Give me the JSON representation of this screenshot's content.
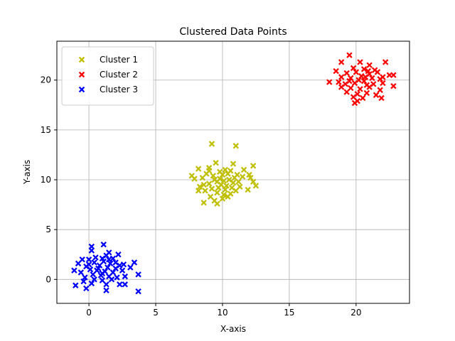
{
  "chart_data": {
    "type": "scatter",
    "title": "Clustered Data Points",
    "xlabel": "X-axis",
    "ylabel": "Y-axis",
    "xlim": [
      -2.4,
      24.0
    ],
    "ylim": [
      -2.4,
      23.9
    ],
    "xticks": [
      0,
      5,
      10,
      15,
      20
    ],
    "yticks": [
      0,
      5,
      10,
      15,
      20
    ],
    "grid": true,
    "legend_position": "top-left",
    "marker": "X",
    "series": [
      {
        "name": "Cluster 1",
        "color": "#bfbf00",
        "points": [
          [
            9.2,
            13.6
          ],
          [
            11.0,
            13.4
          ],
          [
            10.8,
            11.6
          ],
          [
            9.5,
            11.7
          ],
          [
            9.0,
            11.2
          ],
          [
            8.2,
            11.1
          ],
          [
            11.6,
            11.0
          ],
          [
            12.3,
            11.4
          ],
          [
            10.2,
            11.0
          ],
          [
            10.6,
            10.9
          ],
          [
            9.8,
            10.8
          ],
          [
            8.8,
            10.6
          ],
          [
            7.7,
            10.4
          ],
          [
            7.9,
            10.1
          ],
          [
            8.5,
            10.2
          ],
          [
            9.3,
            10.4
          ],
          [
            10.0,
            10.5
          ],
          [
            10.4,
            10.6
          ],
          [
            11.1,
            10.5
          ],
          [
            11.5,
            10.3
          ],
          [
            12.0,
            10.5
          ],
          [
            12.1,
            10.2
          ],
          [
            12.3,
            9.8
          ],
          [
            12.5,
            9.4
          ],
          [
            11.9,
            9.0
          ],
          [
            11.3,
            9.3
          ],
          [
            10.8,
            9.7
          ],
          [
            10.1,
            9.9
          ],
          [
            9.6,
            9.8
          ],
          [
            9.0,
            9.6
          ],
          [
            8.6,
            9.5
          ],
          [
            8.3,
            9.3
          ],
          [
            8.2,
            8.9
          ],
          [
            8.7,
            8.9
          ],
          [
            9.2,
            9.1
          ],
          [
            9.7,
            9.2
          ],
          [
            10.3,
            9.4
          ],
          [
            10.7,
            9.2
          ],
          [
            11.0,
            8.9
          ],
          [
            10.6,
            8.6
          ],
          [
            10.1,
            8.5
          ],
          [
            9.6,
            8.7
          ],
          [
            9.1,
            8.3
          ],
          [
            9.4,
            7.9
          ],
          [
            9.6,
            7.6
          ],
          [
            10.0,
            8.1
          ],
          [
            10.4,
            8.3
          ],
          [
            8.6,
            7.7
          ],
          [
            9.8,
            10.1
          ],
          [
            10.5,
            10.0
          ],
          [
            9.4,
            10.0
          ],
          [
            10.9,
            10.2
          ],
          [
            9.9,
            9.5
          ],
          [
            10.2,
            9.0
          ],
          [
            9.0,
            10.9
          ],
          [
            11.2,
            9.8
          ]
        ]
      },
      {
        "name": "Cluster 2",
        "color": "#ff0000",
        "points": [
          [
            19.5,
            22.5
          ],
          [
            18.9,
            21.8
          ],
          [
            20.3,
            21.8
          ],
          [
            22.2,
            21.8
          ],
          [
            21.0,
            21.5
          ],
          [
            19.8,
            21.2
          ],
          [
            20.6,
            21.1
          ],
          [
            18.5,
            20.9
          ],
          [
            19.3,
            20.7
          ],
          [
            20.0,
            20.8
          ],
          [
            20.9,
            20.9
          ],
          [
            21.6,
            20.8
          ],
          [
            22.5,
            20.5
          ],
          [
            22.8,
            20.5
          ],
          [
            18.9,
            20.3
          ],
          [
            19.6,
            20.2
          ],
          [
            20.4,
            20.4
          ],
          [
            21.2,
            20.2
          ],
          [
            21.8,
            20.1
          ],
          [
            22.0,
            20.3
          ],
          [
            18.0,
            19.8
          ],
          [
            18.7,
            19.8
          ],
          [
            19.2,
            19.6
          ],
          [
            19.9,
            19.7
          ],
          [
            20.6,
            19.9
          ],
          [
            21.3,
            19.6
          ],
          [
            22.0,
            19.7
          ],
          [
            22.8,
            19.4
          ],
          [
            18.9,
            19.3
          ],
          [
            19.6,
            19.2
          ],
          [
            20.3,
            19.1
          ],
          [
            21.0,
            19.3
          ],
          [
            21.8,
            19.0
          ],
          [
            19.3,
            18.8
          ],
          [
            20.1,
            18.6
          ],
          [
            20.8,
            18.7
          ],
          [
            21.5,
            18.5
          ],
          [
            19.8,
            18.3
          ],
          [
            20.5,
            18.2
          ],
          [
            21.9,
            18.2
          ],
          [
            20.1,
            17.9
          ],
          [
            19.9,
            17.7
          ],
          [
            20.7,
            20.3
          ],
          [
            20.2,
            20.0
          ],
          [
            21.0,
            20.6
          ],
          [
            19.5,
            19.9
          ],
          [
            20.8,
            19.5
          ],
          [
            21.4,
            21.0
          ]
        ]
      },
      {
        "name": "Cluster 3",
        "color": "#0000ff",
        "points": [
          [
            1.1,
            3.5
          ],
          [
            0.2,
            3.3
          ],
          [
            0.2,
            2.9
          ],
          [
            1.5,
            2.7
          ],
          [
            2.2,
            2.5
          ],
          [
            1.3,
            2.4
          ],
          [
            0.5,
            2.2
          ],
          [
            1.0,
            2.1
          ],
          [
            -0.5,
            2.0
          ],
          [
            0.0,
            2.0
          ],
          [
            1.8,
            2.1
          ],
          [
            2.6,
            1.5
          ],
          [
            3.4,
            1.7
          ],
          [
            -0.8,
            1.6
          ],
          [
            0.4,
            1.7
          ],
          [
            1.1,
            1.8
          ],
          [
            1.6,
            1.6
          ],
          [
            2.3,
            1.4
          ],
          [
            3.1,
            1.2
          ],
          [
            -0.2,
            1.3
          ],
          [
            0.8,
            1.4
          ],
          [
            1.4,
            1.2
          ],
          [
            2.0,
            1.1
          ],
          [
            0.1,
            1.0
          ],
          [
            0.6,
            0.9
          ],
          [
            1.2,
            0.8
          ],
          [
            1.8,
            0.7
          ],
          [
            2.5,
            0.9
          ],
          [
            -1.1,
            0.9
          ],
          [
            -0.6,
            0.7
          ],
          [
            0.3,
            0.5
          ],
          [
            0.9,
            0.4
          ],
          [
            1.5,
            0.3
          ],
          [
            2.1,
            0.2
          ],
          [
            3.7,
            0.5
          ],
          [
            -0.3,
            0.2
          ],
          [
            0.4,
            0.0
          ],
          [
            1.0,
            -0.1
          ],
          [
            1.7,
            0.0
          ],
          [
            2.7,
            0.3
          ],
          [
            -0.4,
            -0.2
          ],
          [
            0.2,
            -0.4
          ],
          [
            1.3,
            -0.5
          ],
          [
            2.3,
            -0.5
          ],
          [
            2.7,
            -0.5
          ],
          [
            -1.0,
            -0.6
          ],
          [
            -0.2,
            -0.9
          ],
          [
            1.3,
            -1.1
          ],
          [
            3.7,
            -1.2
          ],
          [
            0.7,
            1.1
          ],
          [
            1.5,
            2.0
          ],
          [
            0.0,
            1.5
          ],
          [
            2.0,
            1.7
          ],
          [
            1.0,
            0.6
          ]
        ]
      }
    ]
  }
}
